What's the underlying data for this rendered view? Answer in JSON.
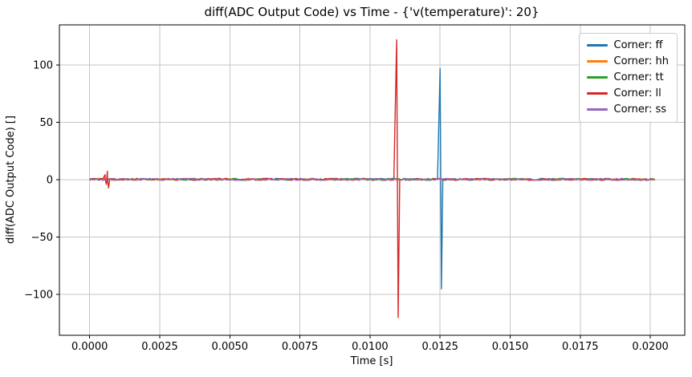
{
  "chart_data": {
    "type": "line",
    "title": "diff(ADC Output Code) vs Time - {'v(temperature)': 20}",
    "xlabel": "Time [s]",
    "ylabel": "diff(ADC Output Code) []",
    "xlim": [
      -0.00108,
      0.02123
    ],
    "ylim": [
      -135.5,
      135
    ],
    "xticks": [
      0.0,
      0.0025,
      0.005,
      0.0075,
      0.01,
      0.0125,
      0.015,
      0.0175,
      0.02
    ],
    "xtick_labels": [
      "0.0000",
      "0.0025",
      "0.0050",
      "0.0075",
      "0.0100",
      "0.0125",
      "0.0150",
      "0.0175",
      "0.0200"
    ],
    "yticks": [
      -100,
      -50,
      0,
      50,
      100
    ],
    "ytick_labels": [
      "−100",
      "−50",
      "0",
      "50",
      "100"
    ],
    "grid": true,
    "grid_color": "#c6c6c6",
    "frame_color": "#000000",
    "time_range": [
      0.0,
      0.0202
    ],
    "baseline": {
      "mean": 0.4,
      "noise_amplitude": 0.9
    },
    "legend": {
      "position": "upper right"
    },
    "series": [
      {
        "name": "Corner: ff",
        "key": "ff",
        "color": "#1f77b4",
        "spikes": [
          {
            "t": 0.0125,
            "peak": 97,
            "trough": -95,
            "width": 9e-05
          }
        ]
      },
      {
        "name": "Corner: hh",
        "key": "hh",
        "color": "#ff7f0e",
        "spikes": []
      },
      {
        "name": "Corner: tt",
        "key": "tt",
        "color": "#2ca02c",
        "spikes": []
      },
      {
        "name": "Corner: ll",
        "key": "ll",
        "color": "#d62728",
        "spikes": [
          {
            "t": 0.00055,
            "peak": 4.5,
            "trough": -4,
            "width": 8e-05
          },
          {
            "t": 0.00063,
            "peak": 7.5,
            "trough": -7,
            "width": 8e-05
          },
          {
            "t": 0.01095,
            "peak": 122,
            "trough": -120,
            "width": 0.0001
          }
        ]
      },
      {
        "name": "Corner: ss",
        "key": "ss",
        "color": "#9467bd",
        "spikes": []
      }
    ]
  }
}
